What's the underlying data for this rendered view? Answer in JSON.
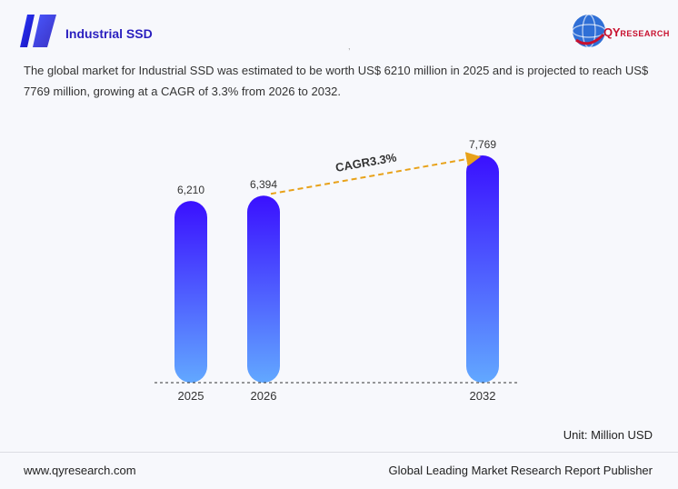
{
  "header": {
    "title": "Industrial SSD",
    "brand_main": "QY",
    "brand_sub": "RESEARCH",
    "tick": ","
  },
  "description": "The global market for Industrial SSD was estimated to be worth US$ 6210 million in 2025 and is projected to reach US$ 7769 million, growing at a CAGR of 3.3% from 2026 to 2032.",
  "unit_label": "Unit: Million USD",
  "footer": {
    "website": "www.qyresearch.com",
    "tagline": "Global Leading Market Research Report Publisher"
  },
  "colors": {
    "bar_top": "#3a10ff",
    "bar_bottom": "#62a8ff",
    "cagr_line": "#e8a21a",
    "title": "#2a1fbf"
  },
  "chart_data": {
    "type": "bar",
    "categories": [
      "2025",
      "2026",
      "2032"
    ],
    "values": [
      6210,
      6394,
      7769
    ],
    "value_labels": [
      "6,210",
      "6,394",
      "7,769"
    ],
    "annotation": "CAGR3.3%",
    "ylim": [
      0,
      8000
    ],
    "grid": false
  }
}
